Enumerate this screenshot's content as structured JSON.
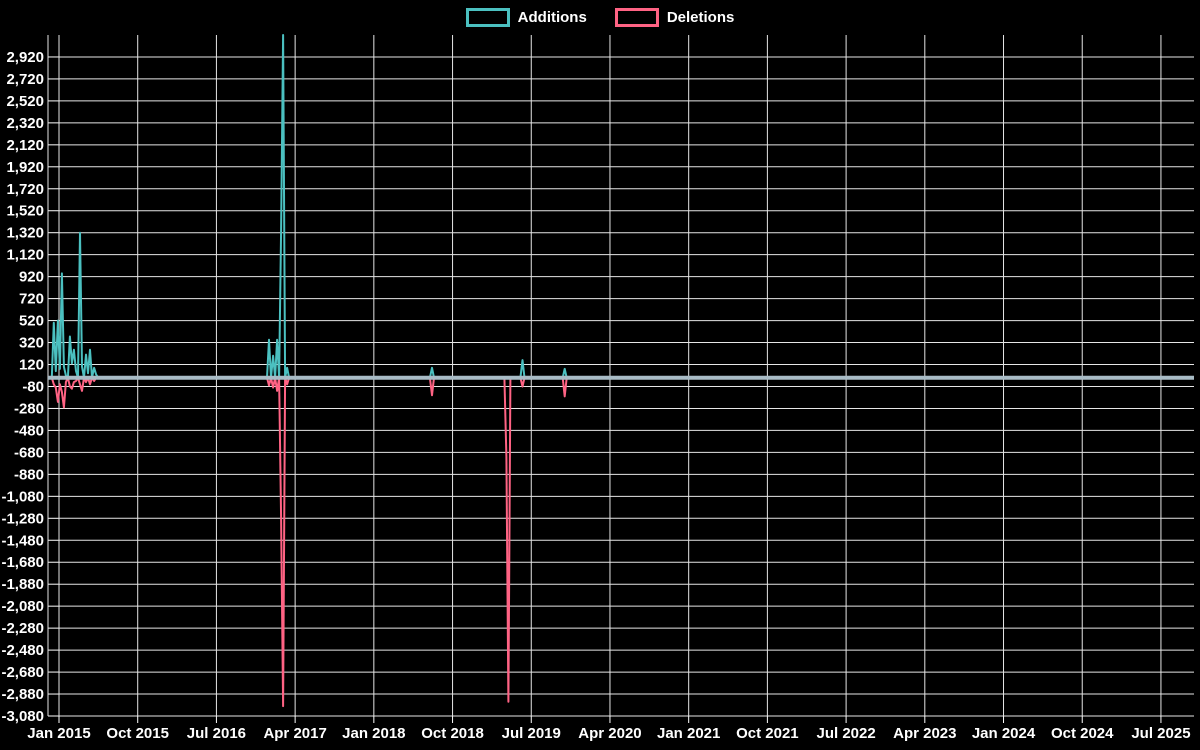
{
  "legend": {
    "items": [
      {
        "label": "Additions",
        "color": "#4bc0c0"
      },
      {
        "label": "Deletions",
        "color": "#ff6384"
      }
    ]
  },
  "chart_data": {
    "type": "line",
    "title": "",
    "xlabel": "",
    "ylabel": "",
    "background_color": "#000000",
    "grid": true,
    "grid_color": "#e6e6e6",
    "text_color": "#ffffff",
    "zero_baseline_color": "#a9bcc6",
    "legend_position": "top-center",
    "ylim": [
      -3080,
      3120
    ],
    "y_tick_step": 200,
    "x_start": "2014-12-07",
    "x_end": "2025-10-19",
    "sampling": "weekly",
    "baseline_value": 0,
    "y_ticks": [
      {
        "v": 2920,
        "label": "2,920"
      },
      {
        "v": 2720,
        "label": "2,720"
      },
      {
        "v": 2520,
        "label": "2,520"
      },
      {
        "v": 2320,
        "label": "2,320"
      },
      {
        "v": 2120,
        "label": "2,120"
      },
      {
        "v": 1920,
        "label": "1,920"
      },
      {
        "v": 1720,
        "label": "1,720"
      },
      {
        "v": 1520,
        "label": "1,520"
      },
      {
        "v": 1320,
        "label": "1,320"
      },
      {
        "v": 1120,
        "label": "1,120"
      },
      {
        "v": 920,
        "label": "920"
      },
      {
        "v": 720,
        "label": "720"
      },
      {
        "v": 520,
        "label": "520"
      },
      {
        "v": 320,
        "label": "320"
      },
      {
        "v": 120,
        "label": "120"
      },
      {
        "v": -80,
        "label": "-80"
      },
      {
        "v": -280,
        "label": "-280"
      },
      {
        "v": -480,
        "label": "-480"
      },
      {
        "v": -680,
        "label": "-680"
      },
      {
        "v": -880,
        "label": "-880"
      },
      {
        "v": -1080,
        "label": "-1,080"
      },
      {
        "v": -1280,
        "label": "-1,280"
      },
      {
        "v": -1480,
        "label": "-1,480"
      },
      {
        "v": -1680,
        "label": "-1,680"
      },
      {
        "v": -1880,
        "label": "-1,880"
      },
      {
        "v": -2080,
        "label": "-2,080"
      },
      {
        "v": -2280,
        "label": "-2,280"
      },
      {
        "v": -2480,
        "label": "-2,480"
      },
      {
        "v": -2680,
        "label": "-2,680"
      },
      {
        "v": -2880,
        "label": "-2,880"
      },
      {
        "v": -3080,
        "label": "-3,080"
      }
    ],
    "x_tick_labels": [
      "Jan 2015",
      "Oct 2015",
      "Jul 2016",
      "Apr 2017",
      "Jan 2018",
      "Oct 2018",
      "Jul 2019",
      "Apr 2020",
      "Jan 2021",
      "Oct 2021",
      "Jul 2022",
      "Apr 2023",
      "Jan 2024",
      "Oct 2024",
      "Jul 2025"
    ],
    "series": [
      {
        "name": "Additions",
        "color": "#4bc0c0",
        "spikes": [
          [
            "2014-12-14",
            500
          ],
          [
            "2014-12-21",
            60
          ],
          [
            "2014-12-28",
            520
          ],
          [
            "2015-01-04",
            80
          ],
          [
            "2015-01-11",
            950
          ],
          [
            "2015-01-18",
            100
          ],
          [
            "2015-01-25",
            20
          ],
          [
            "2015-02-08",
            375
          ],
          [
            "2015-02-15",
            130
          ],
          [
            "2015-02-22",
            255
          ],
          [
            "2015-03-01",
            60
          ],
          [
            "2015-03-15",
            1320
          ],
          [
            "2015-03-22",
            100
          ],
          [
            "2015-04-05",
            210
          ],
          [
            "2015-04-12",
            40
          ],
          [
            "2015-04-19",
            255
          ],
          [
            "2015-05-03",
            90
          ],
          [
            "2015-05-10",
            30
          ],
          [
            "2017-01-01",
            345
          ],
          [
            "2017-01-15",
            200
          ],
          [
            "2017-01-29",
            345
          ],
          [
            "2017-02-12",
            1340
          ],
          [
            "2017-02-19",
            3120
          ],
          [
            "2017-03-05",
            90
          ],
          [
            "2018-07-22",
            90
          ],
          [
            "2019-06-02",
            160
          ],
          [
            "2019-10-27",
            80
          ]
        ]
      },
      {
        "name": "Deletions",
        "color": "#ff6384",
        "spikes": [
          [
            "2014-12-14",
            -60
          ],
          [
            "2014-12-21",
            -90
          ],
          [
            "2014-12-28",
            -220
          ],
          [
            "2015-01-04",
            -60
          ],
          [
            "2015-01-11",
            -130
          ],
          [
            "2015-01-18",
            -270
          ],
          [
            "2015-01-25",
            -40
          ],
          [
            "2015-02-08",
            -80
          ],
          [
            "2015-02-15",
            -100
          ],
          [
            "2015-02-22",
            -40
          ],
          [
            "2015-03-01",
            -30
          ],
          [
            "2015-03-15",
            -60
          ],
          [
            "2015-03-22",
            -120
          ],
          [
            "2015-04-05",
            -40
          ],
          [
            "2015-04-19",
            -60
          ],
          [
            "2015-05-03",
            -30
          ],
          [
            "2017-01-01",
            -70
          ],
          [
            "2017-01-15",
            -90
          ],
          [
            "2017-01-29",
            -120
          ],
          [
            "2017-02-12",
            -1280
          ],
          [
            "2017-02-19",
            -2990
          ],
          [
            "2017-03-05",
            -60
          ],
          [
            "2018-07-22",
            -160
          ],
          [
            "2019-04-07",
            -720
          ],
          [
            "2019-04-14",
            -2950
          ],
          [
            "2019-06-02",
            -80
          ],
          [
            "2019-10-27",
            -170
          ]
        ]
      }
    ]
  }
}
